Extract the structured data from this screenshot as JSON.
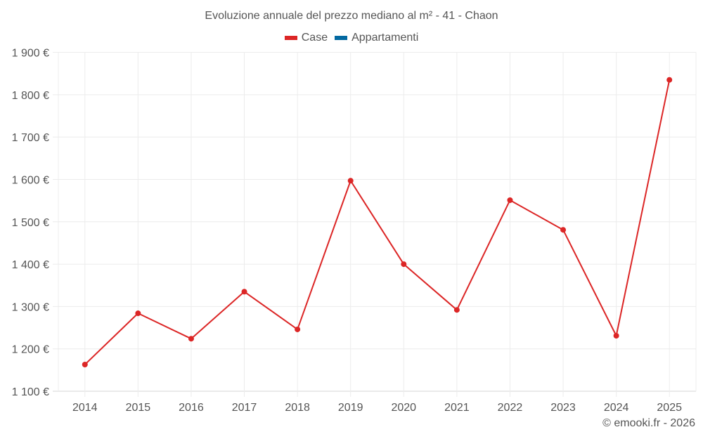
{
  "title": "Evoluzione annuale del prezzo mediano al m² - 41 - Chaon",
  "legend": [
    {
      "label": "Case",
      "color": "#dc2626"
    },
    {
      "label": "Appartamenti",
      "color": "#0369a1"
    }
  ],
  "credit": "© emooki.fr - 2026",
  "chart_data": {
    "type": "line",
    "title": "Evoluzione annuale del prezzo mediano al m² - 41 - Chaon",
    "xlabel": "",
    "ylabel": "",
    "categories": [
      "2014",
      "2015",
      "2016",
      "2017",
      "2018",
      "2019",
      "2020",
      "2021",
      "2022",
      "2023",
      "2024",
      "2025"
    ],
    "series": [
      {
        "name": "Case",
        "color": "#dc2626",
        "values": [
          1163,
          1284,
          1224,
          1335,
          1246,
          1597,
          1400,
          1292,
          1551,
          1481,
          1231,
          1835
        ]
      },
      {
        "name": "Appartamenti",
        "color": "#0369a1",
        "values": []
      }
    ],
    "ylim": [
      1100,
      1900
    ],
    "yticks": [
      1100,
      1200,
      1300,
      1400,
      1500,
      1600,
      1700,
      1800,
      1900
    ],
    "ytick_labels": [
      "1 100 €",
      "1 200 €",
      "1 300 €",
      "1 400 €",
      "1 500 €",
      "1 600 €",
      "1 700 €",
      "1 800 €",
      "1 900 €"
    ],
    "grid": true,
    "legend_position": "top"
  }
}
